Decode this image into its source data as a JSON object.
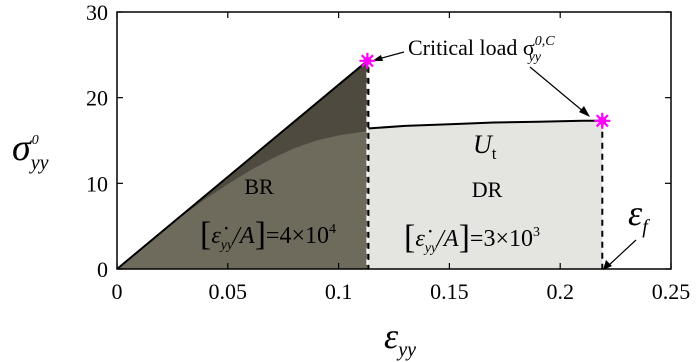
{
  "chart_data": {
    "type": "area",
    "xlim": [
      0,
      0.25
    ],
    "ylim": [
      0,
      30
    ],
    "x_ticks": [
      0,
      0.05,
      0.1,
      0.15,
      0.2,
      0.25
    ],
    "x_tick_labels": [
      "0",
      "0.05",
      "0.1",
      "0.15",
      "0.2",
      "0.25"
    ],
    "y_ticks": [
      0,
      10,
      20,
      30
    ],
    "y_tick_labels": [
      "0",
      "10",
      "20",
      "30"
    ],
    "grid": false,
    "xlabel": {
      "base": "ε",
      "sub": "yy"
    },
    "ylabel": {
      "base": "σ",
      "sub": "yy",
      "sup": "0"
    },
    "series": [
      {
        "role": "brittle-loading-line",
        "x": [
          0,
          0.113
        ],
        "y": [
          0,
          24.3
        ]
      },
      {
        "role": "ductile-plateau",
        "x": [
          0.113,
          0.13,
          0.15,
          0.17,
          0.19,
          0.21,
          0.219
        ],
        "y": [
          16.4,
          16.7,
          16.9,
          17.1,
          17.2,
          17.3,
          17.3
        ]
      },
      {
        "role": "brittle-region-lower-envelope",
        "x": [
          0,
          0.01,
          0.02,
          0.03,
          0.04,
          0.05,
          0.06,
          0.07,
          0.08,
          0.09,
          0.1,
          0.113
        ],
        "y": [
          0,
          2.2,
          4.3,
          6.3,
          8.2,
          9.9,
          11.5,
          12.9,
          14.1,
          15.0,
          15.6,
          16.1
        ]
      }
    ],
    "regions": [
      {
        "label": "BR",
        "strain_rate_label": "4×10",
        "strain_rate_exp": "4",
        "color": "#4e4a40"
      },
      {
        "label": "DR",
        "strain_rate_label": "3×10",
        "strain_rate_exp": "3",
        "color": "#e4e4e0"
      }
    ],
    "area_label": {
      "base": "U",
      "sub": "t"
    },
    "critical_load": {
      "text": "Critical load σ",
      "sub": "yy",
      "sup": "0,C",
      "points": [
        {
          "x": 0.113,
          "y": 24.3
        },
        {
          "x": 0.219,
          "y": 17.3
        }
      ],
      "marker_color": "#ff00ff"
    },
    "failure_strain": {
      "base": "ε",
      "sub": "f",
      "x": 0.219
    },
    "rate_bracket": {
      "eps": "ε̇",
      "sub": "yy",
      "div": "/A",
      "eq": "="
    }
  }
}
